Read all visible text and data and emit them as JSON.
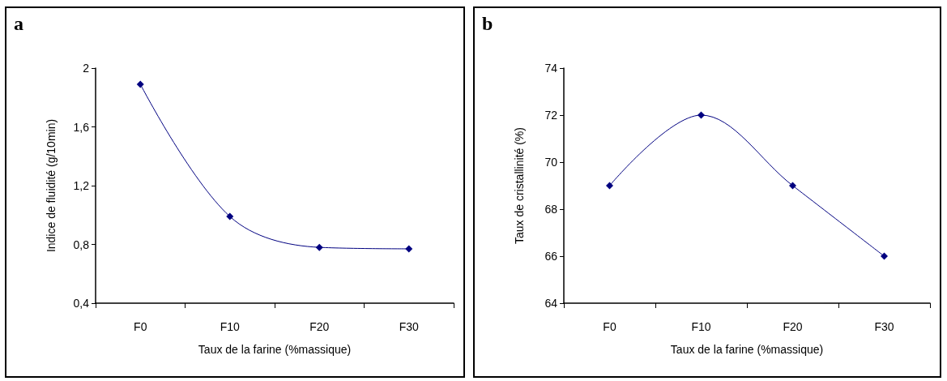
{
  "chart_data": [
    {
      "type": "line",
      "title": "a",
      "xlabel": "Taux de la farine (%massique)",
      "ylabel": "Indice de fluidité (g/10min)",
      "categories": [
        "F0",
        "F10",
        "F20",
        "F30"
      ],
      "series": [
        {
          "color": "#000080",
          "values": [
            1.89,
            0.99,
            0.78,
            0.77
          ]
        }
      ],
      "ylim": [
        0.4,
        2
      ],
      "yticks": [
        {
          "value": 0.4,
          "label": "0,4"
        },
        {
          "value": 0.8,
          "label": "0,8"
        },
        {
          "value": 1.2,
          "label": "1,2"
        },
        {
          "value": 1.6,
          "label": "1,6"
        },
        2
      ],
      "marker": "diamond",
      "grid": false
    },
    {
      "type": "line",
      "title": "b",
      "xlabel": "Taux de la farine (%massique)",
      "ylabel": "Taux de cristallinité (%)",
      "categories": [
        "F0",
        "F10",
        "F20",
        "F30"
      ],
      "series": [
        {
          "color": "#000080",
          "values": [
            69,
            72,
            69,
            66
          ]
        }
      ],
      "ylim": [
        64,
        74
      ],
      "yticks": [
        64,
        66,
        68,
        70,
        72,
        74
      ],
      "marker": "diamond",
      "grid": false
    }
  ]
}
